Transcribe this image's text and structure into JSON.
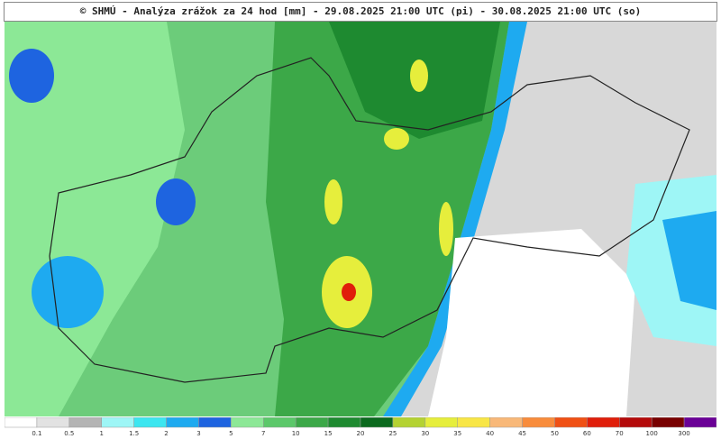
{
  "title": "© SHMÚ - Analýza zrážok za 24 hod [mm] - 29.08.2025 21:00 UTC (pi) - 30.08.2025 21:00 UTC (so)",
  "legend": {
    "colors": [
      "#ffffff",
      "#e2e2e2",
      "#b4b4b4",
      "#9ef6f6",
      "#3ce6f0",
      "#1eaaf0",
      "#1e64e0",
      "#8ce896",
      "#5cc86a",
      "#3ca848",
      "#1e8a30",
      "#0b6a1e",
      "#b4d232",
      "#e6ee3c",
      "#f8e646",
      "#f8b878",
      "#f88c3c",
      "#f05014",
      "#e01e0a",
      "#b40a0a",
      "#780000",
      "#6a0096"
    ],
    "labels": [
      "0.1",
      "0.5",
      "1",
      "1.5",
      "2",
      "3",
      "5",
      "7",
      "10",
      "15",
      "20",
      "25",
      "30",
      "35",
      "40",
      "45",
      "50",
      "60",
      "70",
      "100",
      "300"
    ]
  }
}
